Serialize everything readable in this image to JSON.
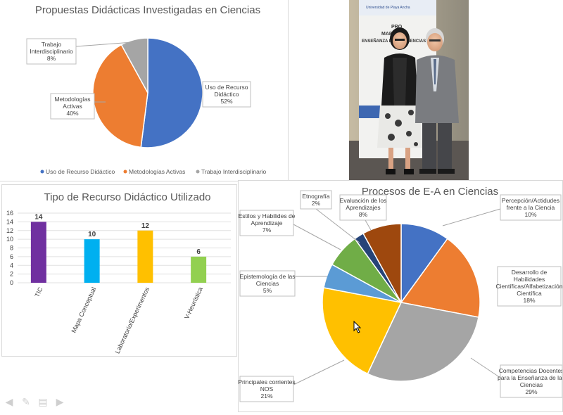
{
  "chart_data": [
    {
      "type": "pie",
      "title": "Propuestas Didácticas Investigadas en Ciencias",
      "categories": [
        "Uso de Recurso Didáctico",
        "Metodologías Activas",
        "Trabajo Interdisciplinario"
      ],
      "values": [
        52,
        40,
        8
      ],
      "callouts": [
        [
          "Uso de Recurso",
          "Didáctico",
          "52%"
        ],
        [
          "Metodologías",
          "Activas",
          "40%"
        ],
        [
          "Trabajo",
          "Interdisciplinario",
          "8%"
        ]
      ],
      "colors": [
        "#4472c4",
        "#ed7d31",
        "#a5a5a5"
      ],
      "legend_position": "bottom"
    },
    {
      "type": "bar",
      "title": "Tipo de Recurso Didáctico Utilizado",
      "categories": [
        "TIC",
        "Mapa Conceptual",
        "Laboratorio/Experimentos",
        "V-Heurística"
      ],
      "values": [
        14,
        10,
        12,
        6
      ],
      "data_labels": [
        "14",
        "10",
        "12",
        "6"
      ],
      "colors": [
        "#7030a0",
        "#00b0f0",
        "#ffc000",
        "#92d050"
      ],
      "ylim": [
        0,
        16
      ],
      "yticks": [
        "0",
        "2",
        "4",
        "6",
        "8",
        "10",
        "12",
        "14",
        "16"
      ]
    },
    {
      "type": "pie",
      "title": "Procesos de E-A en Ciencias",
      "categories": [
        "Percepción/Actidudes frente a la Ciencia",
        "Desarrollo de Habilidades Científicas/Alfabetización Científica",
        "Competencias Docentes para la Enseñanza de las Ciencias",
        "Principales corrientes NOS",
        "Epistemología de las Ciencias",
        "Estilos y Habilides de Aprendizaje",
        "Etnografía",
        "Evaluación de los Aprendizajes"
      ],
      "values": [
        10,
        18,
        29,
        21,
        5,
        7,
        2,
        8
      ],
      "callouts": [
        [
          "Percepción/Actidudes",
          "frente a la Ciencia",
          "10%"
        ],
        [
          "Desarrollo de",
          "Habilidades",
          "Científicas/Alfabetización",
          "Científica",
          "18%"
        ],
        [
          "Competencias Docentes",
          "para la Enseñanza de las",
          "Ciencias",
          "29%"
        ],
        [
          "Principales corrientes",
          "NOS",
          "21%"
        ],
        [
          "Epistemología de las",
          "Ciencias",
          "5%"
        ],
        [
          "Estilos y Habilides de",
          "Aprendizaje",
          "7%"
        ],
        [
          "Etnografía",
          "2%"
        ],
        [
          "Evaluación de los",
          "Aprendizajes",
          "8%"
        ]
      ],
      "colors": [
        "#4472c4",
        "#ed7d31",
        "#a5a5a5",
        "#ffc000",
        "#5b9bd5",
        "#70ad47",
        "#264478",
        "#9e480e"
      ]
    }
  ],
  "photo": {
    "banner_brand": "Universidad de Playa Ancha",
    "banner_lines": [
      "PRO",
      "MAPA",
      "ENSEÑANZA DE LAS CIENCIAS"
    ]
  }
}
